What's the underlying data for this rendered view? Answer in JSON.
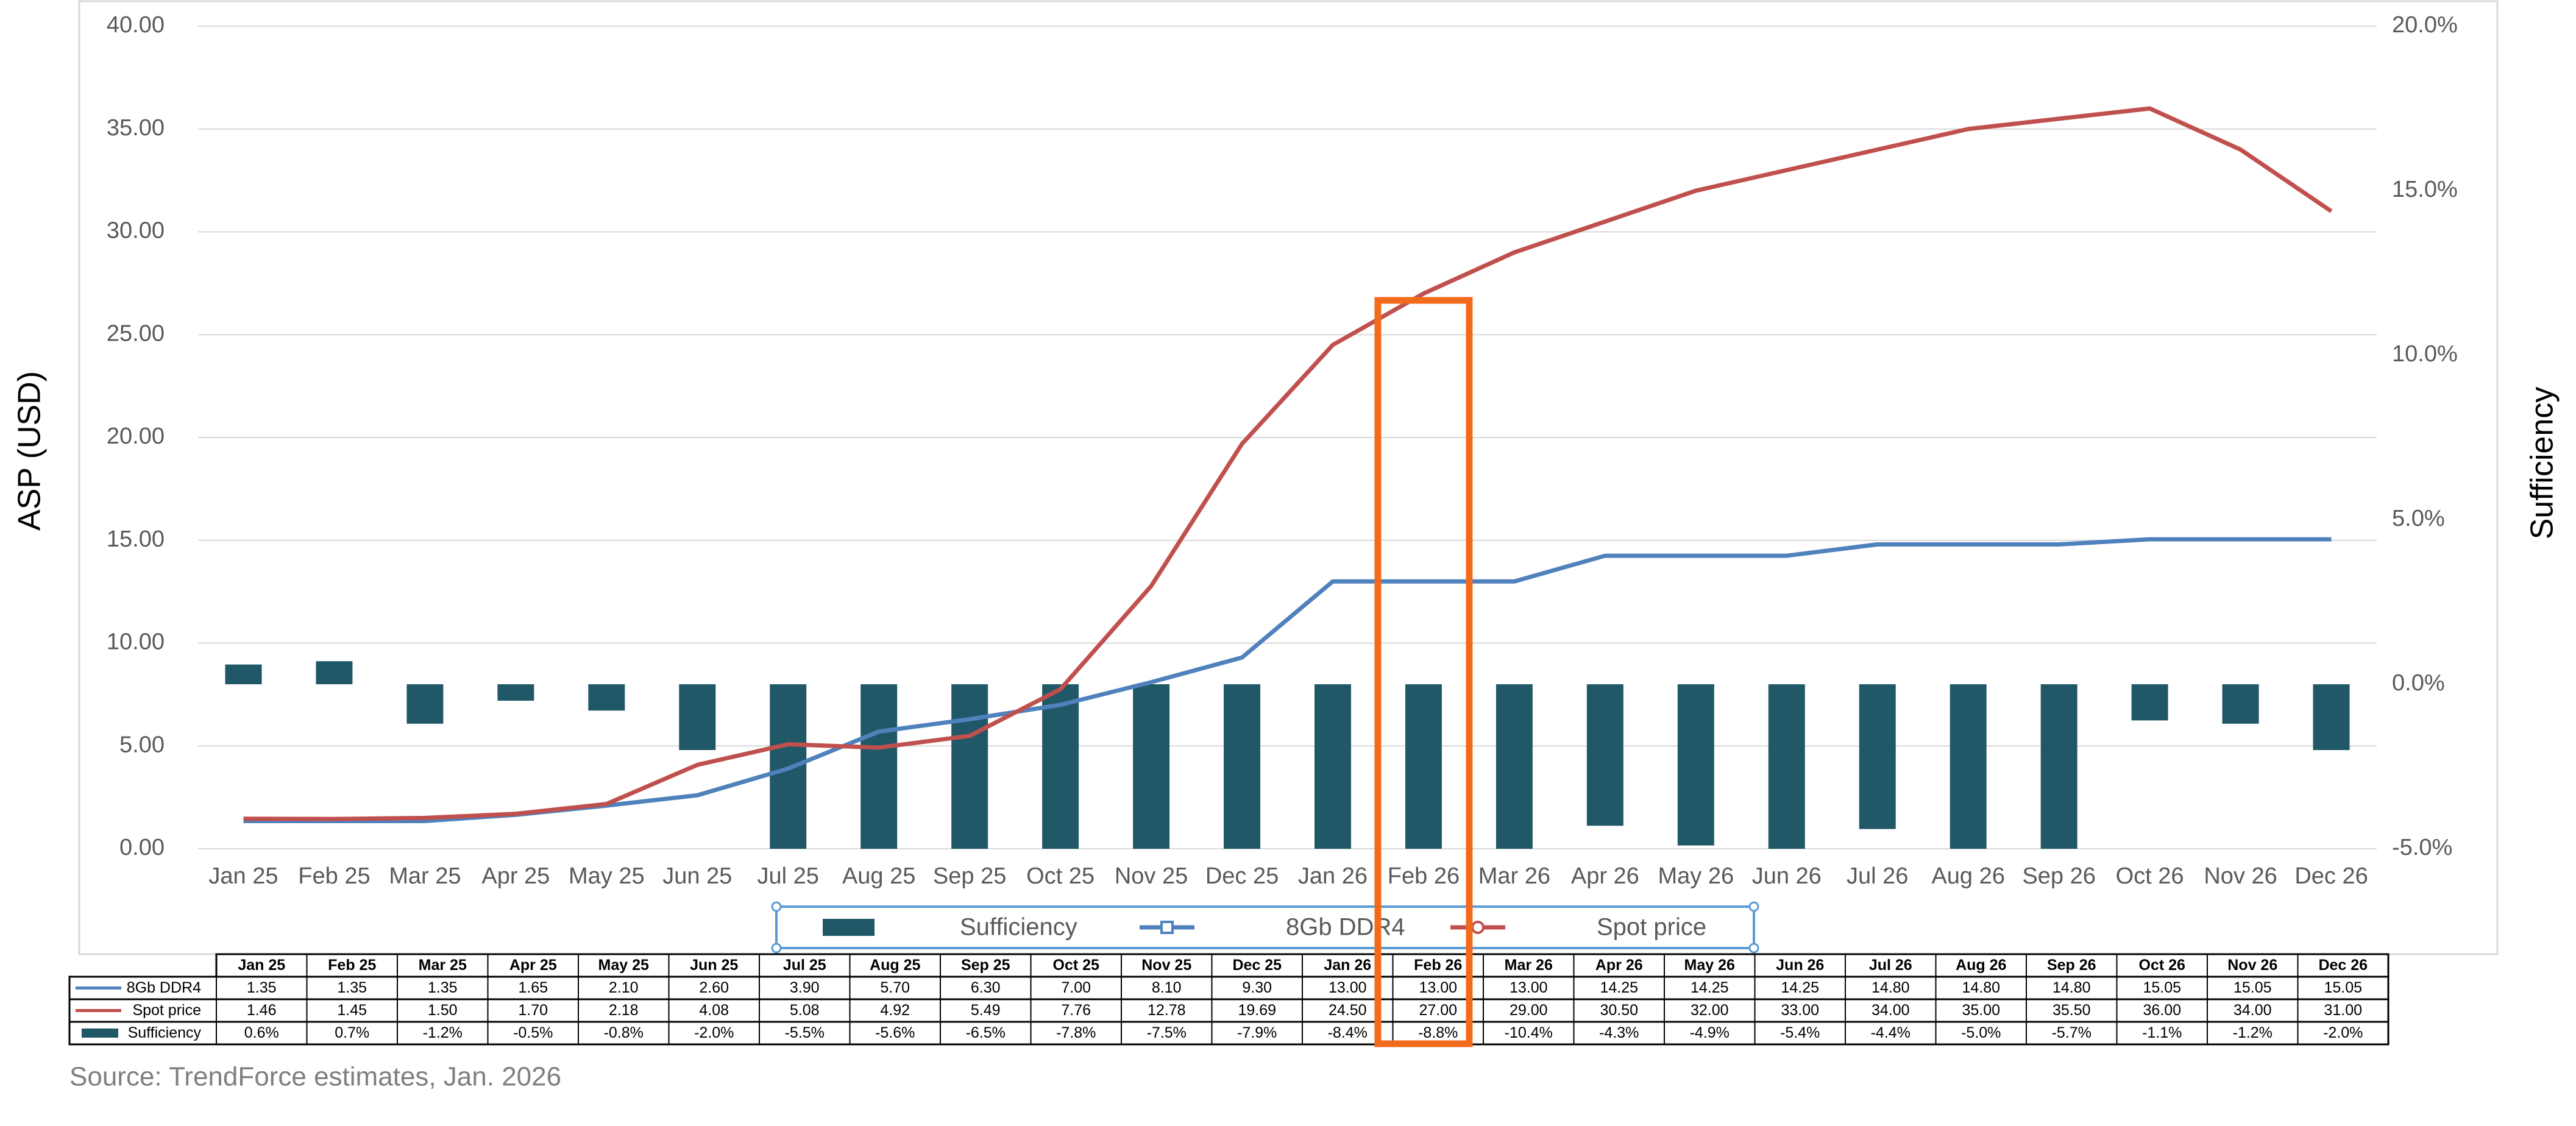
{
  "chart_data": {
    "type": "combo",
    "ylabel": "ASP (USD)",
    "y2label": "Sufficiency",
    "categories": [
      "Jan 25",
      "Feb 25",
      "Mar 25",
      "Apr 25",
      "May 25",
      "Jun 25",
      "Jul 25",
      "Aug 25",
      "Sep 25",
      "Oct 25",
      "Nov 25",
      "Dec 25",
      "Jan 26",
      "Feb 26",
      "Mar 26",
      "Apr 26",
      "May 26",
      "Jun 26",
      "Jul 26",
      "Aug 26",
      "Sep 26",
      "Oct 26",
      "Nov 26",
      "Dec 26"
    ],
    "series": [
      {
        "name": "Sufficiency",
        "kind": "bar",
        "axis": "y2",
        "color": "#215868",
        "values": [
          0.6,
          0.7,
          -1.2,
          -0.5,
          -0.8,
          -2.0,
          -5.5,
          -5.6,
          -6.5,
          -7.8,
          -7.5,
          -7.9,
          -8.4,
          -8.8,
          -10.4,
          -4.3,
          -4.9,
          -5.4,
          -4.4,
          -5.0,
          -5.7,
          -1.1,
          -1.2,
          -2.0
        ],
        "value_labels": [
          "0.6%",
          "0.7%",
          "-1.2%",
          "-0.5%",
          "-0.8%",
          "-2.0%",
          "-5.5%",
          "-5.6%",
          "-6.5%",
          "-7.8%",
          "-7.5%",
          "-7.9%",
          "-8.4%",
          "-8.8%",
          "-10.4%",
          "-4.3%",
          "-4.9%",
          "-5.4%",
          "-4.4%",
          "-5.0%",
          "-5.7%",
          "-1.1%",
          "-1.2%",
          "-2.0%"
        ]
      },
      {
        "name": "8Gb DDR4",
        "kind": "line",
        "color": "#4f81bd",
        "values": [
          1.35,
          1.35,
          1.35,
          1.65,
          2.1,
          2.6,
          3.9,
          5.7,
          6.3,
          7.0,
          8.1,
          9.3,
          13.0,
          13.0,
          13.0,
          14.25,
          14.25,
          14.25,
          14.8,
          14.8,
          14.8,
          15.05,
          15.05,
          15.05
        ],
        "value_labels": [
          "1.35",
          "1.35",
          "1.35",
          "1.65",
          "2.10",
          "2.60",
          "3.90",
          "5.70",
          "6.30",
          "7.00",
          "8.10",
          "9.30",
          "13.00",
          "13.00",
          "13.00",
          "14.25",
          "14.25",
          "14.25",
          "14.80",
          "14.80",
          "14.80",
          "15.05",
          "15.05",
          "15.05"
        ]
      },
      {
        "name": "Spot price",
        "kind": "line",
        "color": "#c0504d",
        "values": [
          1.46,
          1.45,
          1.5,
          1.7,
          2.18,
          4.08,
          5.08,
          4.92,
          5.49,
          7.76,
          12.78,
          19.69,
          24.5,
          27.0,
          29.0,
          30.5,
          32.0,
          33.0,
          34.0,
          35.0,
          35.5,
          36.0,
          34.0,
          31.0
        ],
        "value_labels": [
          "1.46",
          "1.45",
          "1.50",
          "1.70",
          "2.18",
          "4.08",
          "5.08",
          "4.92",
          "5.49",
          "7.76",
          "12.78",
          "19.69",
          "24.50",
          "27.00",
          "29.00",
          "30.50",
          "32.00",
          "33.00",
          "34.00",
          "35.00",
          "35.50",
          "36.00",
          "34.00",
          "31.00"
        ]
      }
    ],
    "ylim": [
      0,
      40
    ],
    "yticks": [
      {
        "value": 0,
        "label": "0.00"
      },
      {
        "value": 5,
        "label": "5.00"
      },
      {
        "value": 10,
        "label": "10.00"
      },
      {
        "value": 15,
        "label": "15.00"
      },
      {
        "value": 20,
        "label": "20.00"
      },
      {
        "value": 25,
        "label": "25.00"
      },
      {
        "value": 30,
        "label": "30.00"
      },
      {
        "value": 35,
        "label": "35.00"
      },
      {
        "value": 40,
        "label": "40.00"
      }
    ],
    "y2lim": [
      -5,
      20
    ],
    "y2ticks": [
      {
        "value": -5,
        "label": "-5.0%"
      },
      {
        "value": 0,
        "label": "0.0%"
      },
      {
        "value": 5,
        "label": "5.0%"
      },
      {
        "value": 10,
        "label": "10.0%"
      },
      {
        "value": 15,
        "label": "15.0%"
      },
      {
        "value": 20,
        "label": "20.0%"
      }
    ],
    "grid": true,
    "legend": "bottom"
  },
  "source": "Source: TrendForce estimates, Jan. 2026"
}
